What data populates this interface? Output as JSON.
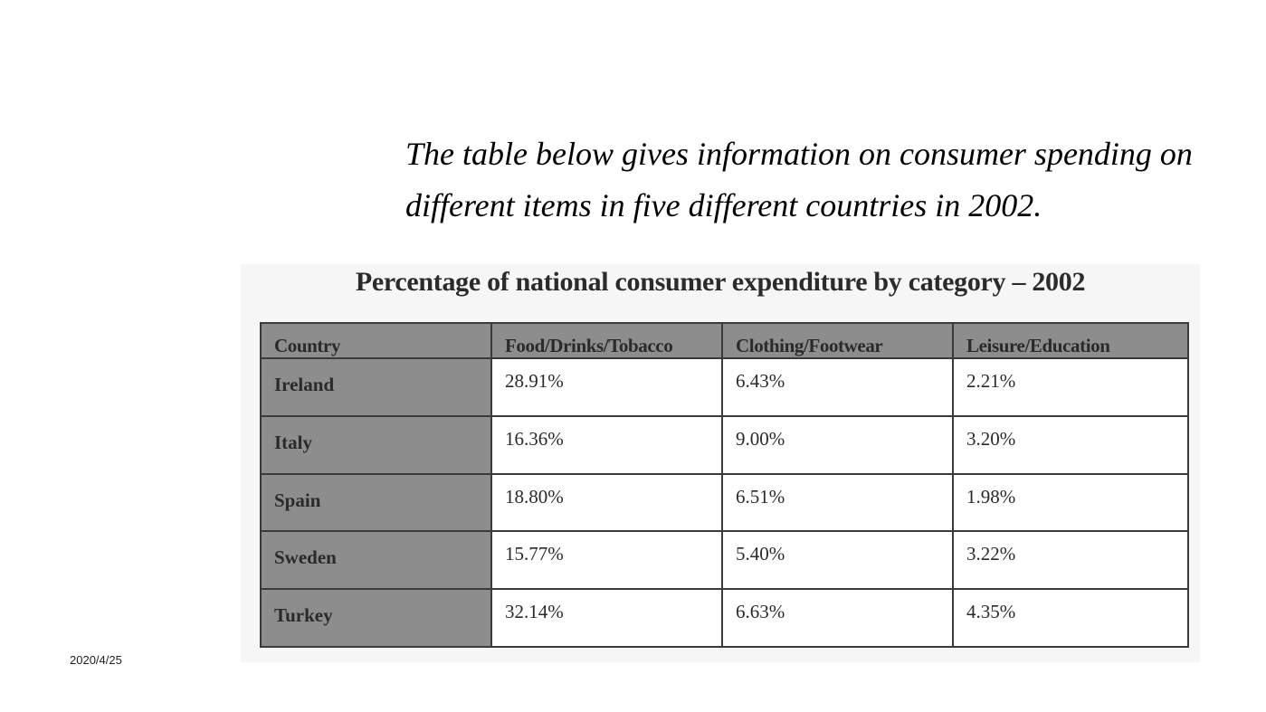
{
  "intro": {
    "line1": "The table below gives information on consumer spending on",
    "line2": "different items in five different countries in 2002."
  },
  "table": {
    "title": "Percentage of national consumer expenditure by category – 2002",
    "headers": [
      "Country",
      "Food/Drinks/Tobacco",
      "Clothing/Footwear",
      "Leisure/Education"
    ],
    "rows": [
      {
        "country": "Ireland",
        "food": "28.91%",
        "clothing": "6.43%",
        "leisure": "2.21%"
      },
      {
        "country": "Italy",
        "food": "16.36%",
        "clothing": "9.00%",
        "leisure": "3.20%"
      },
      {
        "country": "Spain",
        "food": "18.80%",
        "clothing": "6.51%",
        "leisure": "1.98%"
      },
      {
        "country": "Sweden",
        "food": "15.77%",
        "clothing": "5.40%",
        "leisure": "3.22%"
      },
      {
        "country": "Turkey",
        "food": "32.14%",
        "clothing": "6.63%",
        "leisure": "4.35%"
      }
    ]
  },
  "footer": {
    "date": "2020/4/25"
  }
}
